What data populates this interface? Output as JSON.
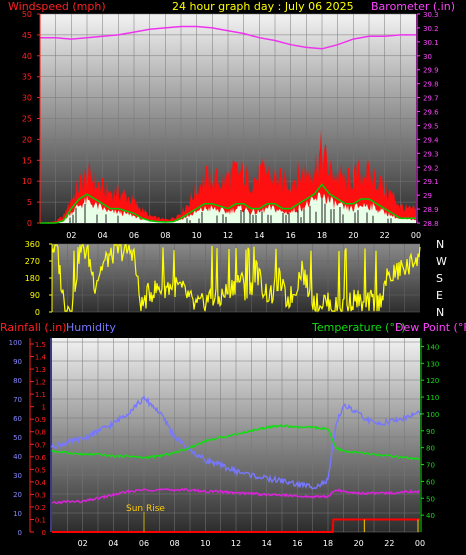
{
  "header": {
    "left_label": "Windspeed (mph)",
    "center_label": "24 hour graph day : July 06 2025",
    "right_label": "Barometer (.in)"
  },
  "panel3_labels": {
    "rainfall": "Rainfall (.in)",
    "humidity": "Humidity",
    "temperature": "Temperature (°F)",
    "dewpoint": "Dew Point (°F)"
  },
  "direction_letters": [
    "N",
    "W",
    "S",
    "E",
    "N"
  ],
  "annotation": {
    "sunrise": "Sun Rise"
  },
  "colors": {
    "background": "#000000",
    "windspeed": "#ff1010",
    "barometer": "#ee33ee",
    "wind_avg": "#00cc00",
    "wind_fill": "#e8ffe8",
    "wind_dir": "#ffff00",
    "humidity": "#7777ff",
    "temperature": "#11dd11",
    "dewpoint": "#dd22dd",
    "rain": "#ff0000",
    "sunrise_line": "#ccaa00",
    "header_left": "#ff2020",
    "header_center": "#ffff00",
    "header_right": "#ff44ff"
  },
  "chart_data": [
    {
      "type": "area",
      "title": "24 hour graph day : July 06 2025",
      "x_tick_labels": [
        "02",
        "04",
        "06",
        "08",
        "10",
        "12",
        "14",
        "16",
        "18",
        "20",
        "22",
        "00"
      ],
      "x_range_hours": [
        0,
        24
      ],
      "grid": true,
      "left_axis": {
        "label": "Windspeed (mph)",
        "range": [
          0,
          50
        ],
        "ticks": [
          0,
          5,
          10,
          15,
          20,
          25,
          30,
          35,
          40,
          45,
          50
        ]
      },
      "right_axis": {
        "label": "Barometer (.in)",
        "range": [
          28.8,
          30.3
        ],
        "ticks": [
          "28.8",
          "28.9",
          "29",
          "29.1",
          "29.2",
          "29.3",
          "29.4",
          "29.5",
          "29.6",
          "29.7",
          "29.8",
          "29.9",
          "30",
          "30.1",
          "30.2",
          "30.3"
        ]
      },
      "series": [
        {
          "name": "Windspeed (mph)",
          "kind": "gust",
          "axis": "left",
          "x": [
            0,
            1,
            1.5,
            2,
            2.5,
            3,
            3.5,
            4,
            4.5,
            5,
            5.5,
            6,
            6.5,
            7,
            7.5,
            8,
            8.5,
            9,
            9.5,
            10,
            10.5,
            11,
            11.5,
            12,
            12.5,
            13,
            13.5,
            14,
            14.5,
            15,
            15.5,
            16,
            16.5,
            17,
            17.5,
            18,
            18.5,
            19,
            19.5,
            20,
            20.5,
            21,
            21.5,
            22,
            22.5,
            23,
            23.5,
            24
          ],
          "values": [
            0,
            0.5,
            2,
            7,
            11,
            14,
            12,
            10,
            9,
            9,
            8,
            6,
            4,
            2,
            1.5,
            1,
            1.5,
            3,
            6,
            10,
            13,
            13,
            12,
            13,
            15,
            14,
            12,
            14,
            15,
            13,
            12,
            12,
            14,
            15,
            16,
            21,
            15,
            14,
            12,
            13,
            15,
            14,
            13,
            10,
            8,
            5,
            4,
            4
          ]
        },
        {
          "name": "Average",
          "kind": "average",
          "axis": "left",
          "x": [
            0,
            1,
            1.5,
            2,
            2.5,
            3,
            3.5,
            4,
            4.5,
            5,
            5.5,
            6,
            6.5,
            7,
            7.5,
            8,
            8.5,
            9,
            9.5,
            10,
            10.5,
            11,
            11.5,
            12,
            12.5,
            13,
            13.5,
            14,
            14.5,
            15,
            15.5,
            16,
            16.5,
            17,
            17.5,
            18,
            18.5,
            19,
            19.5,
            20,
            20.5,
            21,
            21.5,
            22,
            22.5,
            23,
            23.5,
            24
          ],
          "values": [
            0,
            0,
            0.5,
            3,
            5,
            6,
            5,
            4,
            3,
            3,
            2.5,
            2,
            1,
            0.5,
            0.3,
            0.2,
            0.3,
            1,
            2,
            3,
            4,
            4,
            3.5,
            3,
            4,
            4,
            3,
            3,
            4,
            4,
            3,
            3,
            4,
            5,
            6,
            8,
            6,
            5,
            4,
            4,
            5,
            5,
            4,
            3,
            2,
            1,
            1,
            1
          ]
        },
        {
          "name": "Barometer (.in)",
          "axis": "right",
          "x": [
            0,
            1,
            2,
            3,
            4,
            5,
            6,
            7,
            8,
            9,
            10,
            11,
            12,
            13,
            14,
            15,
            16,
            17,
            18,
            19,
            20,
            21,
            22,
            23,
            24
          ],
          "values": [
            30.13,
            30.13,
            30.12,
            30.13,
            30.14,
            30.15,
            30.17,
            30.19,
            30.2,
            30.21,
            30.21,
            30.2,
            30.18,
            30.16,
            30.13,
            30.11,
            30.08,
            30.06,
            30.05,
            30.08,
            30.12,
            30.14,
            30.14,
            30.15,
            30.15
          ]
        }
      ]
    },
    {
      "type": "line",
      "x_tick_labels": [
        "02",
        "04",
        "06",
        "08",
        "10",
        "12",
        "14",
        "16",
        "18",
        "20",
        "22",
        "00"
      ],
      "left_axis": {
        "range": [
          0,
          360
        ],
        "ticks": [
          "0",
          "90",
          "180",
          "270",
          "360"
        ]
      },
      "right_labels": [
        "N",
        "W",
        "S",
        "E",
        "N"
      ],
      "grid": true,
      "series": [
        {
          "name": "Wind Direction",
          "x": [
            0.3,
            0.8,
            1.3,
            1.8,
            2.3,
            2.8,
            3.3,
            3.8,
            4.3,
            4.8,
            5.3,
            5.8,
            6.3,
            6.8,
            7.3,
            7.8,
            8.3,
            8.8,
            9.3,
            9.8,
            10.3,
            10.8,
            11.3,
            11.8,
            12.3,
            12.8,
            13.3,
            13.8,
            14.3,
            14.8,
            15.3,
            15.8,
            16.3,
            16.8,
            17.3,
            17.8,
            18.3,
            18.8,
            19.3,
            19.8,
            20.3,
            20.8,
            21.3,
            21.8,
            22.3,
            22.8,
            23.3,
            23.8
          ],
          "values": [
            340,
            40,
            20,
            330,
            320,
            150,
            250,
            300,
            330,
            320,
            330,
            20,
            100,
            120,
            130,
            140,
            130,
            90,
            30,
            40,
            80,
            60,
            100,
            140,
            180,
            70,
            230,
            120,
            80,
            180,
            60,
            100,
            240,
            90,
            40,
            60,
            20,
            30,
            40,
            80,
            20,
            60,
            40,
            170,
            200,
            230,
            240,
            300
          ]
        }
      ]
    },
    {
      "type": "line",
      "x_tick_labels": [
        "02",
        "04",
        "06",
        "08",
        "10",
        "12",
        "14",
        "16",
        "18",
        "20",
        "22",
        "00"
      ],
      "grid": true,
      "left_axis_outer": {
        "label": "Rainfall (.in)",
        "ticks": [
          "0",
          "0.1",
          "0.2",
          "0.3",
          "0.4",
          "0.5",
          "0.6",
          "0.7",
          "0.8",
          "0.9",
          "1",
          "1.1",
          "1.2",
          "1.3",
          "1.4",
          "1.5"
        ]
      },
      "left_axis_inner": {
        "label": "Humidity",
        "range": [
          0,
          100
        ],
        "ticks": [
          "0",
          "10",
          "20",
          "30",
          "40",
          "50",
          "60",
          "70",
          "80",
          "90",
          "100"
        ]
      },
      "right_axis": {
        "label": "Temperature (°F) Dew Point (°F)",
        "range": [
          30,
          145
        ],
        "ticks": [
          "40",
          "50",
          "60",
          "70",
          "80",
          "90",
          "100",
          "110",
          "120",
          "130",
          "140"
        ]
      },
      "annotations": [
        {
          "text": "Sun Rise",
          "x": 6
        }
      ],
      "series": [
        {
          "name": "Humidity",
          "axis": "inner-left",
          "x": [
            0,
            1,
            2,
            3,
            4,
            5,
            5.5,
            6,
            6.5,
            7,
            7.5,
            8,
            9,
            10,
            11,
            12,
            13,
            14,
            15,
            16,
            17,
            17.5,
            18,
            18.5,
            19,
            20,
            21,
            22,
            23,
            24
          ],
          "values": [
            45,
            47,
            49,
            53,
            57,
            63,
            67,
            70,
            67,
            63,
            57,
            50,
            43,
            38,
            35,
            32,
            30,
            28,
            27,
            25,
            24,
            25,
            27,
            55,
            67,
            62,
            57,
            58,
            60,
            63
          ]
        },
        {
          "name": "Temperature (°F)",
          "axis": "right",
          "x": [
            0,
            1,
            2,
            3,
            4,
            5,
            6,
            7,
            8,
            9,
            10,
            11,
            12,
            13,
            14,
            15,
            16,
            17,
            18,
            18.5,
            19,
            20,
            21,
            22,
            23,
            24
          ],
          "values": [
            78,
            77,
            76,
            76,
            75,
            75,
            74,
            75,
            77,
            80,
            84,
            86,
            88,
            90,
            92,
            93,
            92,
            92,
            91,
            80,
            78,
            77,
            76,
            75,
            74,
            73
          ]
        },
        {
          "name": "Dew Point (°F)",
          "axis": "right",
          "x": [
            0,
            1,
            2,
            3,
            4,
            5,
            6,
            7,
            8,
            9,
            10,
            11,
            12,
            13,
            14,
            15,
            16,
            17,
            18,
            18.5,
            19,
            20,
            21,
            22,
            23,
            24
          ],
          "values": [
            47,
            48,
            48,
            50,
            52,
            54,
            55,
            55,
            55,
            55,
            54,
            54,
            53,
            53,
            52,
            52,
            51,
            51,
            51,
            55,
            54,
            53,
            53,
            53,
            54,
            54
          ]
        },
        {
          "name": "Rainfall (.in)",
          "axis": "outer-left",
          "x": [
            0,
            18.3,
            18.35,
            24
          ],
          "values": [
            0,
            0,
            0.1,
            0.1
          ]
        }
      ]
    }
  ]
}
